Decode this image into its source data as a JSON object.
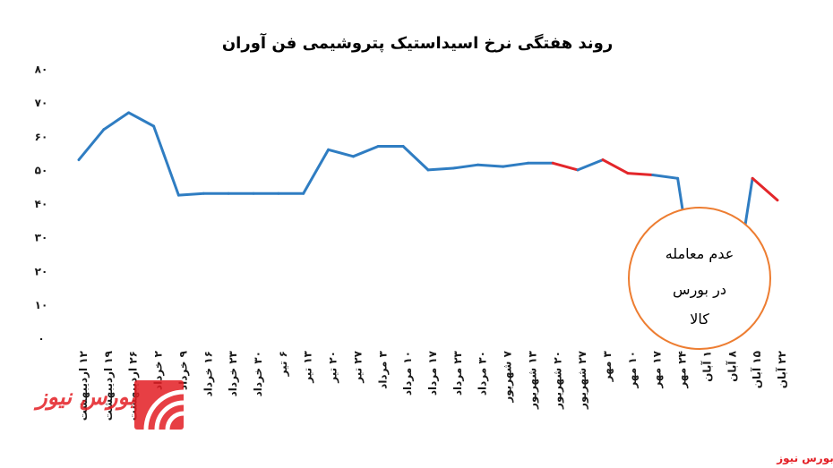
{
  "chart_data": {
    "type": "line",
    "title": "روند هفتگی نرخ اسیداستیک پتروشیمی فن آوران",
    "categories": [
      "۱۲ اردیبهشت",
      "۱۹ اردیبهشت",
      "۲۶ اردیبهشت",
      "۲ خرداد",
      "۹ خرداد",
      "۱۶ خرداد",
      "۲۳ خرداد",
      "۳۰ خرداد",
      "۶ تیر",
      "۱۳ تیر",
      "۲۰ تیر",
      "۲۷ تیر",
      "۳ مرداد",
      "۱۰ مرداد",
      "۱۷ مرداد",
      "۲۳ مرداد",
      "۳۰ مرداد",
      "۷ شهریور",
      "۱۳ شهریور",
      "۲۰ شهریور",
      "۲۷ شهریور",
      "۳ مهر",
      "۱۰ مهر",
      "۱۷ مهر",
      "۲۴ مهر",
      "۱ آبان",
      "۸ آبان",
      "۱۵ آبان",
      "۲۲ آبان"
    ],
    "values": [
      53,
      62,
      67,
      63,
      42.5,
      43,
      43,
      43,
      43,
      43,
      56,
      54,
      57,
      57,
      50,
      50.5,
      51.5,
      51,
      52,
      52,
      50,
      53,
      49,
      48.5,
      47.5,
      0,
      0,
      47.5,
      41
    ],
    "ylim": [
      0,
      80
    ],
    "yticks": [
      0,
      10,
      20,
      30,
      40,
      50,
      60,
      70,
      80
    ],
    "ytick_labels": [
      "۰",
      "۱۰",
      "۲۰",
      "۳۰",
      "۴۰",
      "۵۰",
      "۶۰",
      "۷۰",
      "۸۰"
    ],
    "grid": false,
    "colors": {
      "line": "#2f7dc2",
      "highlight": "#e3262a",
      "annotation_border": "#ed7d31"
    },
    "highlight_segments": [
      [
        19,
        20
      ],
      [
        21,
        22
      ],
      [
        22,
        23
      ],
      [
        27,
        28
      ]
    ],
    "annotation": {
      "lines": [
        "عدم معامله",
        "در بورس",
        "کالا"
      ]
    }
  },
  "brand_color": "#e31e24",
  "logo": {
    "text": "بورس نیوز"
  },
  "source": "بورس نیوز"
}
